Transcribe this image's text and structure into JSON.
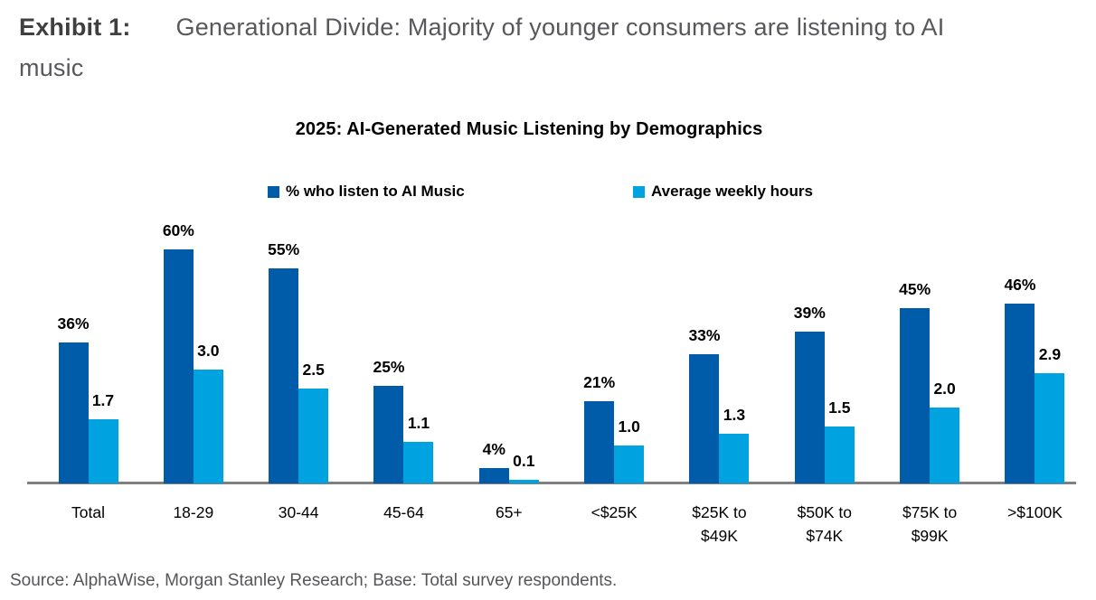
{
  "header": {
    "exhibit_label": "Exhibit 1:",
    "title_lines": [
      "Generational Divide: Majority of younger consumers are listening to AI",
      "music"
    ]
  },
  "chart_data": {
    "type": "bar",
    "title": "2025: AI-Generated Music Listening by Demographics",
    "categories": [
      "Total",
      "18-29",
      "30-44",
      "45-64",
      "65+",
      "<$25K",
      "$25K to\n$49K",
      "$50K to\n$74K",
      "$75K to\n$99K",
      ">$100K"
    ],
    "series": [
      {
        "name": "% who listen to AI Music",
        "color": "#005CA9",
        "unit": "percent",
        "values": [
          36,
          60,
          55,
          25,
          4,
          21,
          33,
          39,
          45,
          46
        ],
        "labels": [
          "36%",
          "60%",
          "55%",
          "25%",
          "4%",
          "21%",
          "33%",
          "39%",
          "45%",
          "46%"
        ]
      },
      {
        "name": "Average weekly hours",
        "color": "#00A3E0",
        "unit": "hours",
        "values": [
          1.7,
          3.0,
          2.5,
          1.1,
          0.1,
          1.0,
          1.3,
          1.5,
          2.0,
          2.9
        ],
        "labels": [
          "1.7",
          "3.0",
          "2.5",
          "1.1",
          "0.1",
          "1.0",
          "1.3",
          "1.5",
          "2.0",
          "2.9"
        ]
      }
    ],
    "legend_position": "top",
    "grid": false,
    "value_labels_shown": true,
    "axis_line_color": "#808080"
  },
  "source": {
    "text": "Source: AlphaWise, Morgan Stanley Research; Base: Total survey respondents."
  }
}
